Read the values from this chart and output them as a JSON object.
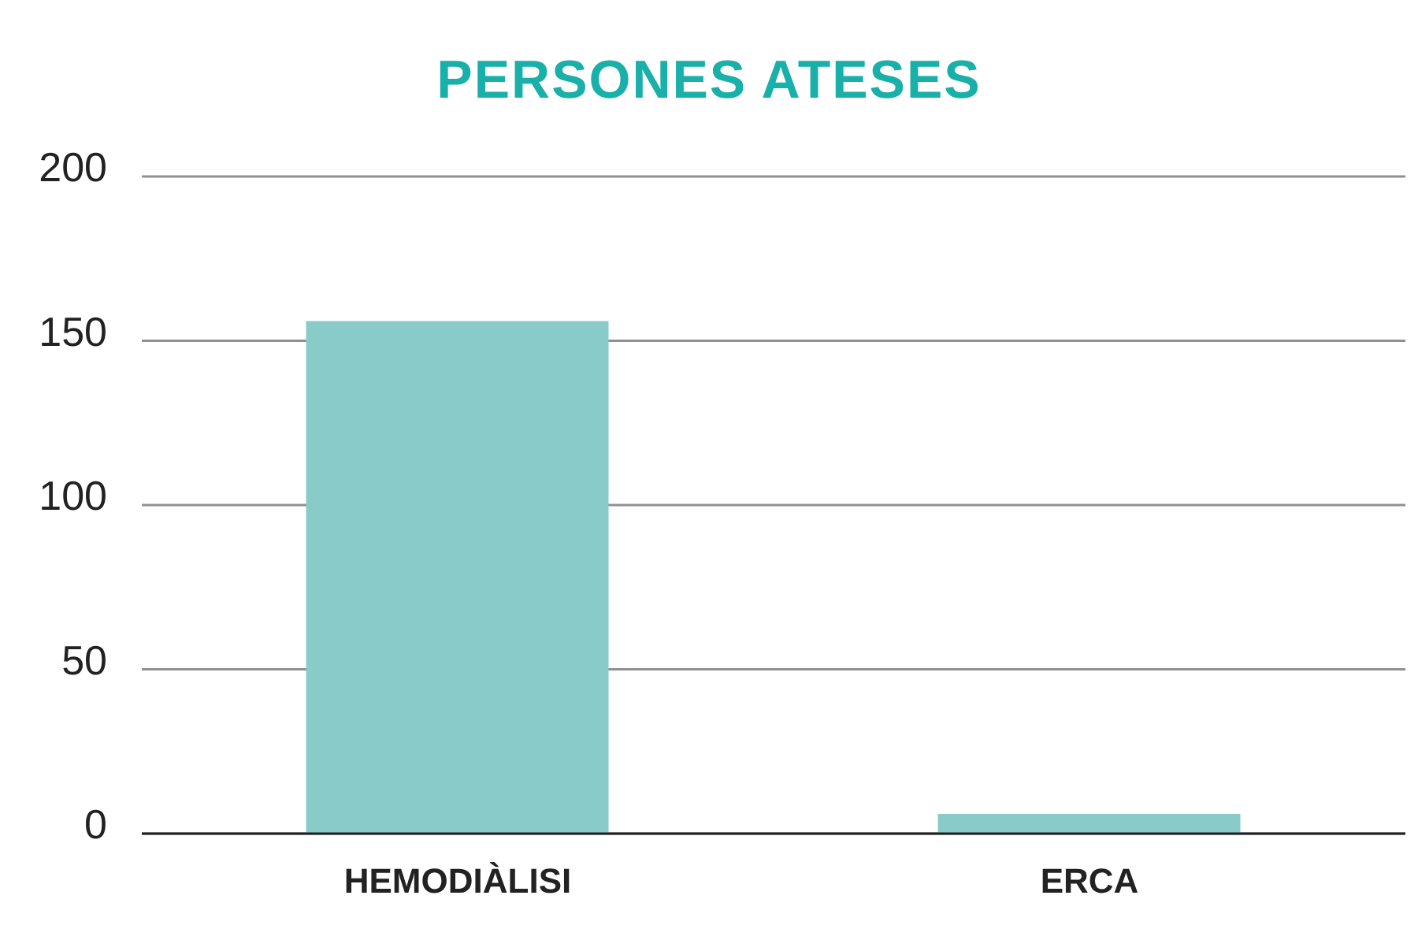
{
  "chart_data": {
    "type": "bar",
    "title": "PERSONES ATESES",
    "categories": [
      "HEMODIÀLISI",
      "ERCA"
    ],
    "values": [
      156,
      6
    ],
    "color": "#88cbc8",
    "ylim": [
      0,
      200
    ],
    "yticks": [
      0,
      50,
      100,
      150,
      200
    ],
    "grid": "y"
  }
}
